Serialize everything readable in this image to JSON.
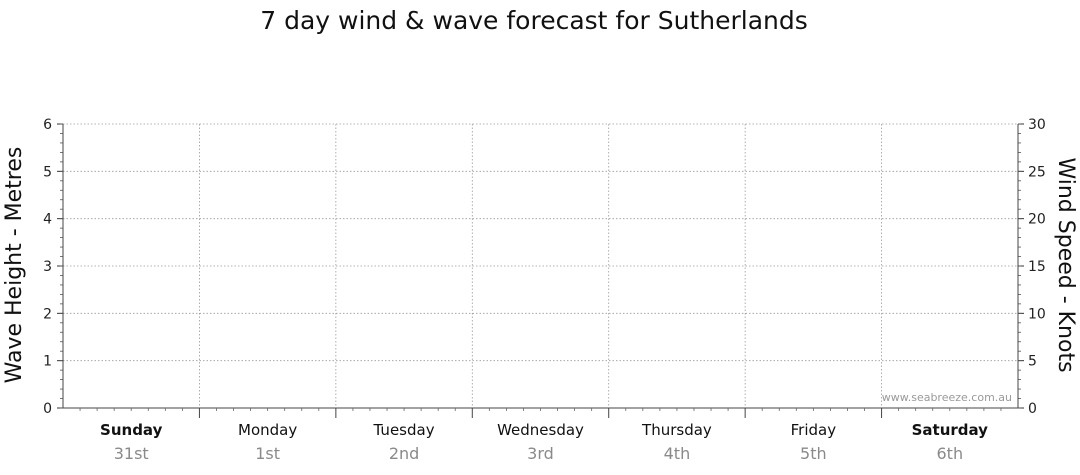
{
  "chart_data": {
    "type": "line",
    "title": "7 day wind & wave forecast for Sutherlands",
    "ylabel_left": "Wave Height - Metres",
    "ylabel_right": "Wind Speed - Knots",
    "ylim_left": [
      0,
      6
    ],
    "ylim_right": [
      0,
      30
    ],
    "yticks_left": [
      "0",
      "1",
      "2",
      "3",
      "4",
      "5",
      "6"
    ],
    "yticks_right": [
      "0",
      "5",
      "10",
      "15",
      "20",
      "25",
      "30"
    ],
    "grid": true,
    "days": [
      {
        "name": "Sunday",
        "date": "31st",
        "bold": true
      },
      {
        "name": "Monday",
        "date": "1st",
        "bold": false
      },
      {
        "name": "Tuesday",
        "date": "2nd",
        "bold": false
      },
      {
        "name": "Wednesday",
        "date": "3rd",
        "bold": false
      },
      {
        "name": "Thursday",
        "date": "4th",
        "bold": false
      },
      {
        "name": "Friday",
        "date": "5th",
        "bold": false
      },
      {
        "name": "Saturday",
        "date": "6th",
        "bold": true
      }
    ],
    "series": [],
    "watermark": "www.seabreeze.com.au"
  }
}
